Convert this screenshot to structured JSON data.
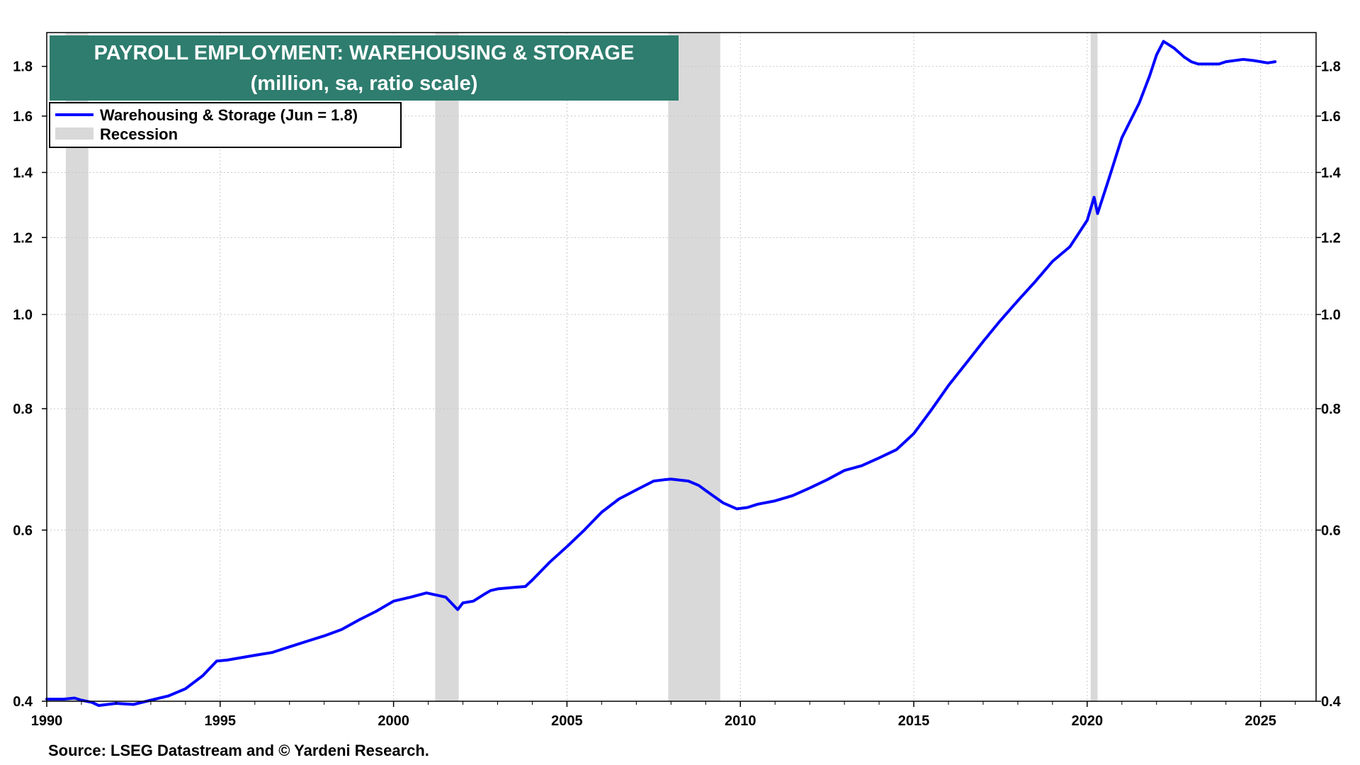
{
  "chart_data": {
    "type": "line",
    "title": "PAYROLL EMPLOYMENT: WAREHOUSING & STORAGE",
    "subtitle": "(million, sa, ratio scale)",
    "source": "Source: LSEG Datastream and © Yardeni Research.",
    "scale": "log",
    "grid": true,
    "legend_position": "top-left",
    "xlim": [
      1990,
      2026.6
    ],
    "ylim": [
      0.4,
      1.95
    ],
    "x_ticks": [
      1990,
      1995,
      2000,
      2005,
      2010,
      2015,
      2020,
      2025
    ],
    "x_tick_labels": [
      "1990",
      "1995",
      "2000",
      "2005",
      "2010",
      "2015",
      "2020",
      "2025"
    ],
    "y_ticks": [
      0.4,
      0.6,
      0.8,
      1.0,
      1.2,
      1.4,
      1.6,
      1.8
    ],
    "y_tick_labels": [
      "0.4",
      "0.6",
      "0.8",
      "1.0",
      "1.2",
      "1.4",
      "1.6",
      "1.8"
    ],
    "recessions": [
      {
        "start": 1990.55,
        "end": 1991.2
      },
      {
        "start": 2001.2,
        "end": 2001.88
      },
      {
        "start": 2007.92,
        "end": 2009.42
      },
      {
        "start": 2020.1,
        "end": 2020.3
      }
    ],
    "legend": [
      {
        "label": "Warehousing & Storage (Jun = 1.8)",
        "kind": "line",
        "color": "#0000ff"
      },
      {
        "label": "Recession",
        "kind": "band",
        "color": "#d9d9d9"
      }
    ],
    "series": [
      {
        "name": "Warehousing & Storage (Jun = 1.8)",
        "color": "#0000ff",
        "x": [
          1990.0,
          1990.5,
          1990.8,
          1991.0,
          1991.3,
          1991.5,
          1992.0,
          1992.5,
          1993.0,
          1993.5,
          1994.0,
          1994.5,
          1994.9,
          1995.2,
          1996.0,
          1996.5,
          1997.0,
          1997.5,
          1998.0,
          1998.5,
          1999.0,
          1999.5,
          2000.0,
          2000.5,
          2000.95,
          2001.5,
          2001.85,
          2002.0,
          2002.3,
          2002.6,
          2002.8,
          2003.0,
          2003.5,
          2003.8,
          2004.0,
          2004.5,
          2005.0,
          2005.5,
          2006.0,
          2006.5,
          2007.0,
          2007.5,
          2007.8,
          2008.0,
          2008.5,
          2008.8,
          2009.0,
          2009.5,
          2009.9,
          2010.2,
          2010.5,
          2011.0,
          2011.5,
          2012.0,
          2012.5,
          2013.0,
          2013.5,
          2014.0,
          2014.5,
          2015.0,
          2015.5,
          2016.0,
          2016.5,
          2017.0,
          2017.5,
          2018.0,
          2018.5,
          2019.0,
          2019.5,
          2020.0,
          2020.2,
          2020.3,
          2020.6,
          2021.0,
          2021.5,
          2021.8,
          2022.0,
          2022.2,
          2022.5,
          2022.8,
          2023.0,
          2023.2,
          2023.5,
          2023.8,
          2024.0,
          2024.5,
          2024.8,
          2025.0,
          2025.2,
          2025.42
        ],
        "values": [
          0.402,
          0.402,
          0.403,
          0.401,
          0.399,
          0.396,
          0.398,
          0.397,
          0.401,
          0.405,
          0.412,
          0.425,
          0.44,
          0.441,
          0.446,
          0.449,
          0.455,
          0.461,
          0.467,
          0.474,
          0.485,
          0.495,
          0.507,
          0.512,
          0.517,
          0.512,
          0.497,
          0.505,
          0.507,
          0.515,
          0.52,
          0.522,
          0.524,
          0.525,
          0.533,
          0.556,
          0.577,
          0.6,
          0.626,
          0.646,
          0.66,
          0.674,
          0.676,
          0.677,
          0.674,
          0.667,
          0.659,
          0.64,
          0.631,
          0.633,
          0.638,
          0.643,
          0.651,
          0.663,
          0.676,
          0.691,
          0.699,
          0.712,
          0.726,
          0.754,
          0.797,
          0.845,
          0.89,
          0.938,
          0.986,
          1.033,
          1.081,
          1.134,
          1.174,
          1.25,
          1.32,
          1.27,
          1.37,
          1.52,
          1.65,
          1.76,
          1.85,
          1.91,
          1.88,
          1.84,
          1.82,
          1.81,
          1.81,
          1.81,
          1.82,
          1.83,
          1.825,
          1.82,
          1.815,
          1.82
        ]
      }
    ]
  }
}
